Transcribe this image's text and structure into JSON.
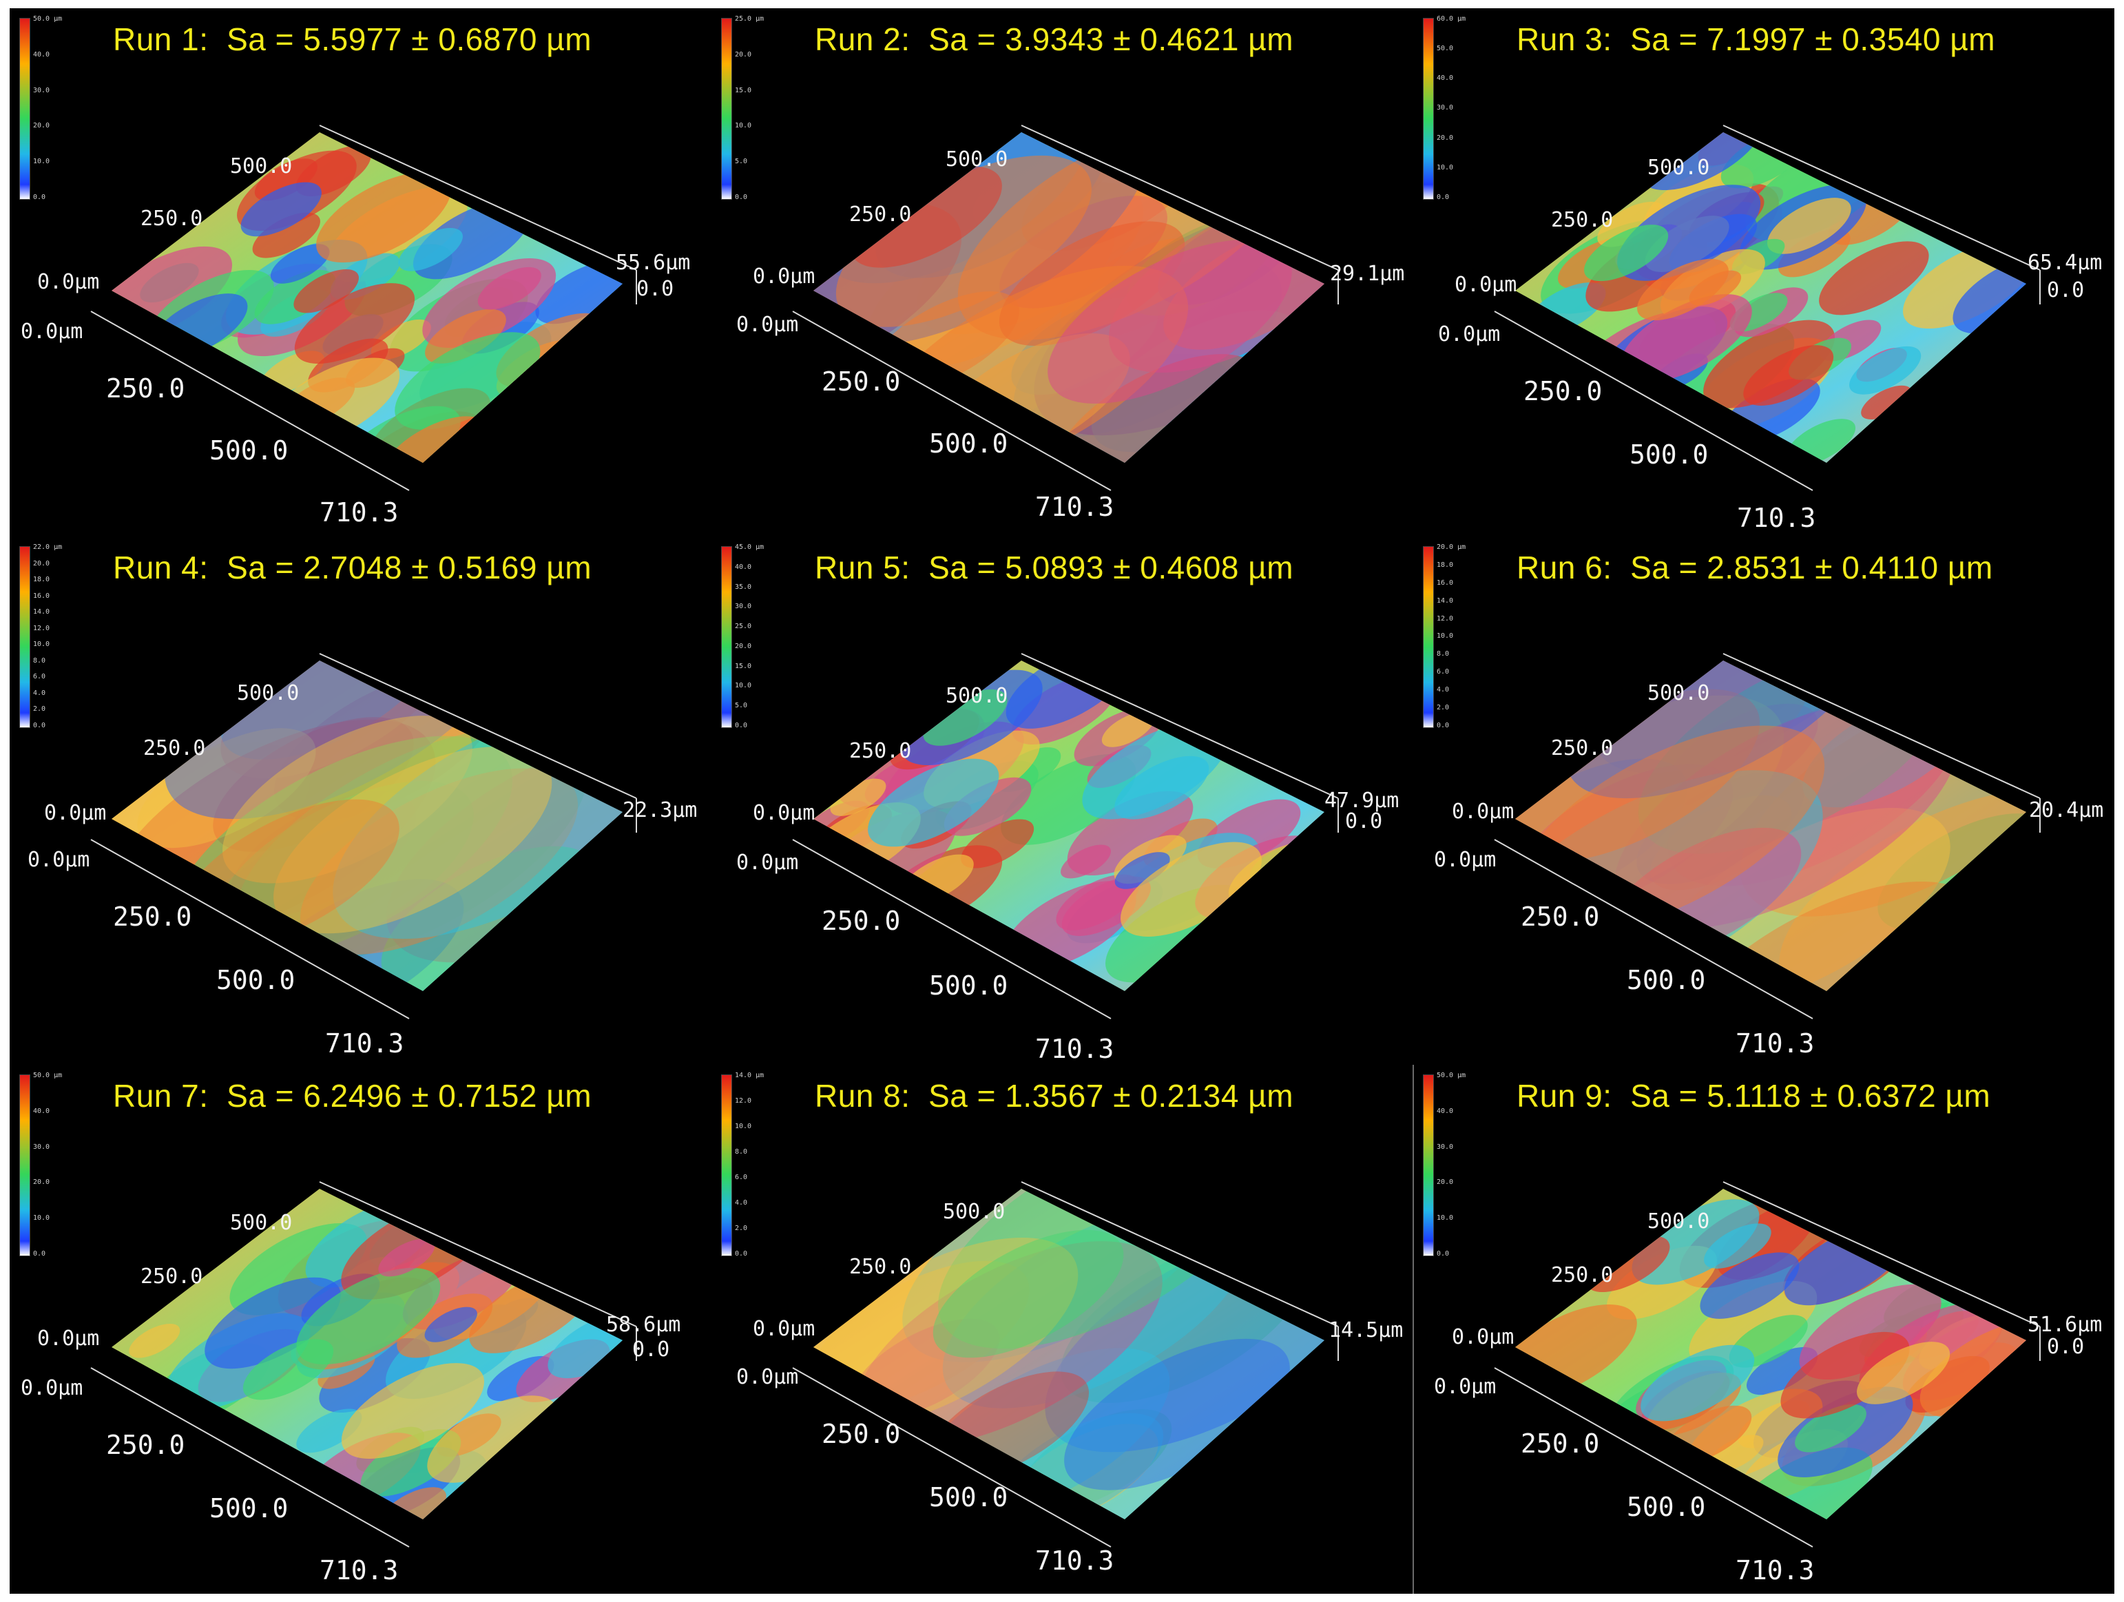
{
  "colors": {
    "background": "#000000",
    "title": "#f2ea1a",
    "axis_text": "#f4f4f4",
    "scale_low": "#1e3cff",
    "scale_mid": "#34d65a",
    "scale_high": "#e21a1a"
  },
  "panels": [
    {
      "title": "Run 1:  Sa = 5.5977 ± 0.6870 µm",
      "scale_labels": [
        "50.0 µm",
        "40.0",
        "30.0",
        "20.0",
        "10.0",
        "0.0"
      ],
      "z_max": "55.6µm",
      "z_zero": "0.0",
      "y_ticks": [
        "500.0",
        "250.0",
        "0.0µm"
      ],
      "x_ticks": [
        "0.0µm",
        "250.0",
        "500.0",
        "710.3"
      ],
      "roughness": 0.9
    },
    {
      "title": "Run 2:  Sa = 3.9343 ± 0.4621 µm",
      "scale_labels": [
        "25.0 µm",
        "20.0",
        "15.0",
        "10.0",
        "5.0",
        "0.0"
      ],
      "z_max": "29.1µm",
      "z_zero": "",
      "y_ticks": [
        "500.0",
        "250.0",
        "0.0µm"
      ],
      "x_ticks": [
        "0.0µm",
        "250.0",
        "500.0",
        "710.3"
      ],
      "roughness": 0.45
    },
    {
      "title": "Run 3:  Sa = 7.1997 ± 0.3540 µm",
      "scale_labels": [
        "60.0 µm",
        "50.0",
        "40.0",
        "30.0",
        "20.0",
        "10.0",
        "0.0"
      ],
      "z_max": "65.4µm",
      "z_zero": "0.0",
      "y_ticks": [
        "500.0",
        "250.0",
        "0.0µm"
      ],
      "x_ticks": [
        "0.0µm",
        "250.0",
        "500.0",
        "710.3"
      ],
      "roughness": 1.0
    },
    {
      "title": "Run 4:  Sa = 2.7048 ± 0.5169 µm",
      "scale_labels": [
        "22.0 µm",
        "20.0",
        "18.0",
        "16.0",
        "14.0",
        "12.0",
        "10.0",
        "8.0",
        "6.0",
        "4.0",
        "2.0",
        "0.0"
      ],
      "z_max": "22.3µm",
      "z_zero": "",
      "y_ticks": [
        "500.0",
        "250.0",
        "0.0µm"
      ],
      "x_ticks": [
        "0.0µm",
        "250.0",
        "500.0",
        "710.3"
      ],
      "roughness": 0.25
    },
    {
      "title": "Run 5:  Sa = 5.0893 ± 0.4608 µm",
      "scale_labels": [
        "45.0 µm",
        "40.0",
        "35.0",
        "30.0",
        "25.0",
        "20.0",
        "15.0",
        "10.0",
        "5.0",
        "0.0"
      ],
      "z_max": "47.9µm",
      "z_zero": "0.0",
      "y_ticks": [
        "500.0",
        "250.0",
        "0.0µm"
      ],
      "x_ticks": [
        "0.0µm",
        "250.0",
        "500.0",
        "710.3"
      ],
      "roughness": 0.85
    },
    {
      "title": "Run 6:  Sa = 2.8531 ± 0.4110 µm",
      "scale_labels": [
        "20.0 µm",
        "18.0",
        "16.0",
        "14.0",
        "12.0",
        "10.0",
        "8.0",
        "6.0",
        "4.0",
        "2.0",
        "0.0"
      ],
      "z_max": "20.4µm",
      "z_zero": "",
      "y_ticks": [
        "500.0",
        "250.0",
        "0.0µm"
      ],
      "x_ticks": [
        "0.0µm",
        "250.0",
        "500.0",
        "710.3"
      ],
      "roughness": 0.3
    },
    {
      "title": "Run 7:  Sa = 6.2496 ± 0.7152 µm",
      "scale_labels": [
        "50.0 µm",
        "40.0",
        "30.0",
        "20.0",
        "10.0",
        "0.0"
      ],
      "z_max": "58.6µm",
      "z_zero": "0.0",
      "y_ticks": [
        "500.0",
        "250.0",
        "0.0µm"
      ],
      "x_ticks": [
        "0.0µm",
        "250.0",
        "500.0",
        "710.3"
      ],
      "roughness": 0.8
    },
    {
      "title": "Run 8:  Sa = 1.3567 ± 0.2134 µm",
      "scale_labels": [
        "14.0 µm",
        "12.0",
        "10.0",
        "8.0",
        "6.0",
        "4.0",
        "2.0",
        "0.0"
      ],
      "z_max": "14.5µm",
      "z_zero": "",
      "y_ticks": [
        "500.0",
        "250.0",
        "0.0µm"
      ],
      "x_ticks": [
        "0.0µm",
        "250.0",
        "500.0",
        "710.3"
      ],
      "roughness": 0.15
    },
    {
      "title": "Run 9:  Sa = 5.1118 ± 0.6372 µm",
      "scale_labels": [
        "50.0 µm",
        "40.0",
        "30.0",
        "20.0",
        "10.0",
        "0.0"
      ],
      "z_max": "51.6µm",
      "z_zero": "0.0",
      "y_ticks": [
        "500.0",
        "250.0",
        "0.0µm"
      ],
      "x_ticks": [
        "0.0µm",
        "250.0",
        "500.0",
        "710.3"
      ],
      "roughness": 0.85
    }
  ]
}
